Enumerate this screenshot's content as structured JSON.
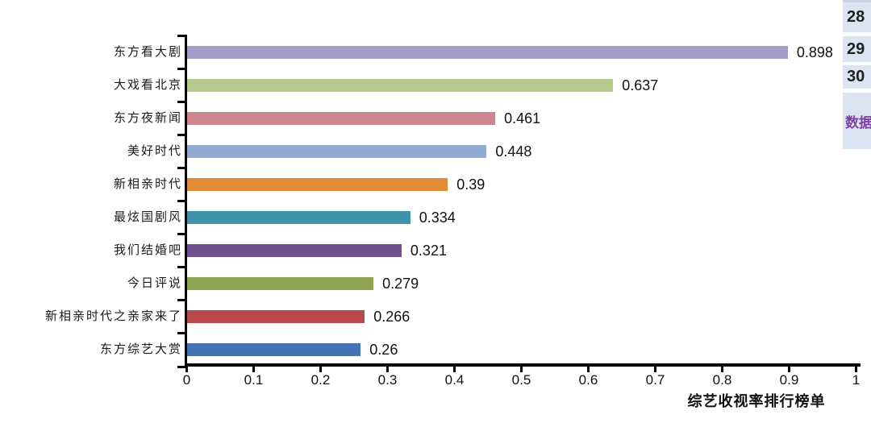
{
  "chart_data": {
    "type": "bar",
    "orientation": "horizontal",
    "title": "",
    "xlabel": "综艺收视率排行榜单",
    "ylabel": "",
    "xlim": [
      0,
      1
    ],
    "grid": false,
    "legend": null,
    "categories": [
      "东方看大剧",
      "大戏看北京",
      "东方夜新闻",
      "美好时代",
      "新相亲时代",
      "最炫国剧风",
      "我们结婚吧",
      "今日评说",
      "新相亲时代之亲家来了",
      "东方综艺大赏"
    ],
    "values": [
      0.898,
      0.637,
      0.461,
      0.448,
      0.39,
      0.334,
      0.321,
      0.279,
      0.266,
      0.26
    ],
    "value_labels": [
      "0.898",
      "0.637",
      "0.461",
      "0.448",
      "0.39",
      "0.334",
      "0.321",
      "0.279",
      "0.266",
      "0.26"
    ],
    "bar_colors": [
      "#a49bc7",
      "#b6c98e",
      "#cd878c",
      "#93aad3",
      "#e28c38",
      "#3e94ac",
      "#6f5190",
      "#8ca454",
      "#b9484b",
      "#4373b3"
    ],
    "x_ticks": [
      "0",
      "0.1",
      "0.2",
      "0.3",
      "0.4",
      "0.5",
      "0.6",
      "0.7",
      "0.8",
      "0.9",
      "1"
    ],
    "x_tick_values": [
      0,
      0.1,
      0.2,
      0.3,
      0.4,
      0.5,
      0.6,
      0.7,
      0.8,
      0.9,
      1
    ],
    "axis_color": "#000000"
  },
  "sidebar": {
    "background": "#dbe4f0",
    "items": [
      {
        "label": "28"
      },
      {
        "label": "29"
      },
      {
        "label": "30"
      }
    ],
    "highlight_label": "数据",
    "highlight_color": "#7e3fa5"
  }
}
